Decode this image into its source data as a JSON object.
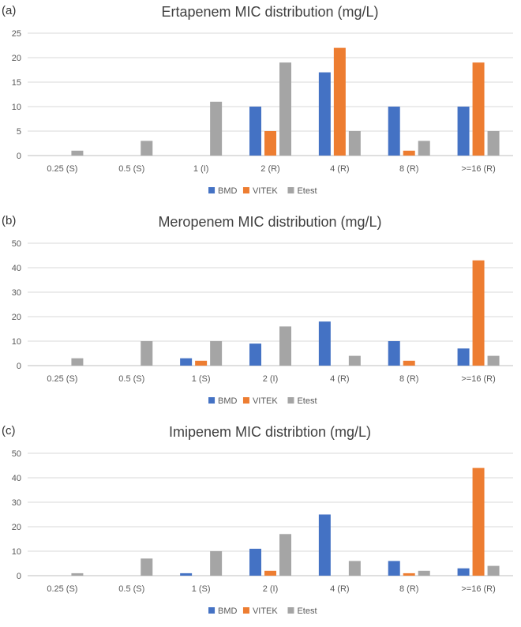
{
  "chart_data": [
    {
      "type": "bar",
      "panel_label": "(a)",
      "title": "Ertapenem MIC distribution (mg/L)",
      "categories": [
        "0.25 (S)",
        "0.5 (S)",
        "1 (I)",
        "2 (R)",
        "4 (R)",
        "8 (R)",
        ">=16 (R)"
      ],
      "ylim": [
        0,
        25
      ],
      "yticks": [
        0,
        5,
        10,
        15,
        20,
        25
      ],
      "grid": true,
      "legend_position": "bottom",
      "series": [
        {
          "name": "BMD",
          "color": "#4472c4",
          "values": [
            0,
            0,
            0,
            10,
            17,
            10,
            10
          ]
        },
        {
          "name": "VITEK",
          "color": "#ed7d31",
          "values": [
            0,
            0,
            0,
            5,
            22,
            1,
            19
          ]
        },
        {
          "name": "Etest",
          "color": "#a5a5a5",
          "values": [
            1,
            3,
            11,
            19,
            5,
            3,
            5
          ]
        }
      ]
    },
    {
      "type": "bar",
      "panel_label": "(b)",
      "title": "Meropenem MIC distribution (mg/L)",
      "categories": [
        "0.25 (S)",
        "0.5 (S)",
        "1 (S)",
        "2 (I)",
        "4 (R)",
        "8 (R)",
        ">=16 (R)"
      ],
      "ylim": [
        0,
        50
      ],
      "yticks": [
        0,
        10,
        20,
        30,
        40,
        50
      ],
      "grid": true,
      "legend_position": "bottom",
      "series": [
        {
          "name": "BMD",
          "color": "#4472c4",
          "values": [
            0,
            0,
            3,
            9,
            18,
            10,
            7
          ]
        },
        {
          "name": "VITEK",
          "color": "#ed7d31",
          "values": [
            0,
            0,
            2,
            0,
            0,
            2,
            43
          ]
        },
        {
          "name": "Etest",
          "color": "#a5a5a5",
          "values": [
            3,
            10,
            10,
            16,
            4,
            0,
            4
          ]
        }
      ]
    },
    {
      "type": "bar",
      "panel_label": "(c)",
      "title": "Imipenem MIC distribtion (mg/L)",
      "categories": [
        "0.25 (S)",
        "0.5 (S)",
        "1 (S)",
        "2 (I)",
        "4 (R)",
        "8 (R)",
        ">=16 (R)"
      ],
      "ylim": [
        0,
        50
      ],
      "yticks": [
        0,
        10,
        20,
        30,
        40,
        50
      ],
      "grid": true,
      "legend_position": "bottom",
      "series": [
        {
          "name": "BMD",
          "color": "#4472c4",
          "values": [
            0,
            0,
            1,
            11,
            25,
            6,
            3
          ]
        },
        {
          "name": "VITEK",
          "color": "#ed7d31",
          "values": [
            0,
            0,
            0,
            2,
            0,
            1,
            44
          ]
        },
        {
          "name": "Etest",
          "color": "#a5a5a5",
          "values": [
            1,
            7,
            10,
            17,
            6,
            2,
            4
          ]
        }
      ]
    }
  ]
}
